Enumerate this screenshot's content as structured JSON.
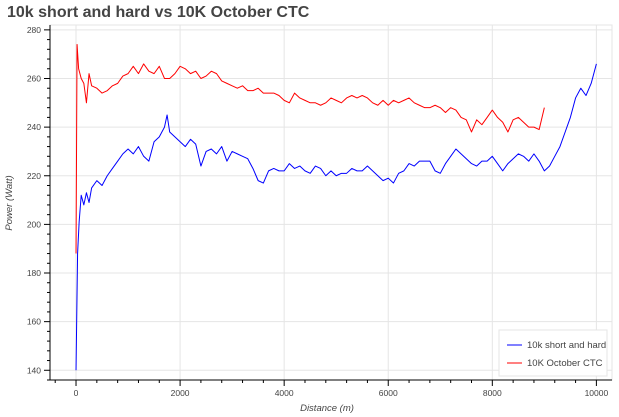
{
  "chart_data": {
    "type": "line",
    "title": "10k short and hard vs 10K October CTC",
    "xlabel": "Distance (m)",
    "ylabel": "Power (Watt)",
    "xlim": [
      -500,
      10300
    ],
    "ylim": [
      136,
      282
    ],
    "x_ticks": [
      0,
      2000,
      4000,
      6000,
      8000,
      10000
    ],
    "y_ticks": [
      140,
      160,
      180,
      200,
      220,
      240,
      260,
      280
    ],
    "grid": true,
    "legend_position": "bottom-right",
    "series": [
      {
        "name": "10k short and hard",
        "color": "#0000ff",
        "points": [
          [
            0,
            140
          ],
          [
            30,
            188
          ],
          [
            60,
            201
          ],
          [
            100,
            212
          ],
          [
            150,
            208
          ],
          [
            200,
            213
          ],
          [
            250,
            209
          ],
          [
            300,
            215
          ],
          [
            400,
            218
          ],
          [
            500,
            216
          ],
          [
            600,
            220
          ],
          [
            700,
            223
          ],
          [
            800,
            226
          ],
          [
            900,
            229
          ],
          [
            1000,
            231
          ],
          [
            1100,
            229
          ],
          [
            1200,
            232
          ],
          [
            1300,
            228
          ],
          [
            1400,
            226
          ],
          [
            1500,
            234
          ],
          [
            1600,
            236
          ],
          [
            1700,
            240
          ],
          [
            1750,
            245
          ],
          [
            1800,
            238
          ],
          [
            1900,
            236
          ],
          [
            2000,
            234
          ],
          [
            2100,
            232
          ],
          [
            2200,
            235
          ],
          [
            2300,
            233
          ],
          [
            2400,
            224
          ],
          [
            2500,
            230
          ],
          [
            2600,
            231
          ],
          [
            2700,
            229
          ],
          [
            2800,
            232
          ],
          [
            2900,
            226
          ],
          [
            3000,
            230
          ],
          [
            3100,
            229
          ],
          [
            3200,
            228
          ],
          [
            3300,
            227
          ],
          [
            3400,
            223
          ],
          [
            3500,
            218
          ],
          [
            3600,
            217
          ],
          [
            3700,
            222
          ],
          [
            3800,
            223
          ],
          [
            3900,
            222
          ],
          [
            4000,
            222
          ],
          [
            4100,
            225
          ],
          [
            4200,
            223
          ],
          [
            4300,
            224
          ],
          [
            4400,
            222
          ],
          [
            4500,
            221
          ],
          [
            4600,
            224
          ],
          [
            4700,
            223
          ],
          [
            4800,
            220
          ],
          [
            4900,
            222
          ],
          [
            5000,
            220
          ],
          [
            5100,
            221
          ],
          [
            5200,
            221
          ],
          [
            5300,
            223
          ],
          [
            5400,
            222
          ],
          [
            5500,
            222
          ],
          [
            5600,
            224
          ],
          [
            5700,
            222
          ],
          [
            5800,
            220
          ],
          [
            5900,
            218
          ],
          [
            6000,
            219
          ],
          [
            6100,
            217
          ],
          [
            6200,
            221
          ],
          [
            6300,
            222
          ],
          [
            6400,
            225
          ],
          [
            6500,
            224
          ],
          [
            6600,
            226
          ],
          [
            6700,
            226
          ],
          [
            6800,
            226
          ],
          [
            6900,
            222
          ],
          [
            7000,
            221
          ],
          [
            7100,
            225
          ],
          [
            7200,
            228
          ],
          [
            7300,
            231
          ],
          [
            7400,
            229
          ],
          [
            7500,
            227
          ],
          [
            7600,
            225
          ],
          [
            7700,
            224
          ],
          [
            7800,
            226
          ],
          [
            7900,
            226
          ],
          [
            8000,
            228
          ],
          [
            8100,
            225
          ],
          [
            8200,
            222
          ],
          [
            8300,
            225
          ],
          [
            8400,
            227
          ],
          [
            8500,
            229
          ],
          [
            8600,
            228
          ],
          [
            8700,
            226
          ],
          [
            8800,
            229
          ],
          [
            8900,
            226
          ],
          [
            9000,
            222
          ],
          [
            9100,
            224
          ],
          [
            9200,
            228
          ],
          [
            9300,
            232
          ],
          [
            9400,
            238
          ],
          [
            9500,
            244
          ],
          [
            9600,
            252
          ],
          [
            9700,
            256
          ],
          [
            9800,
            253
          ],
          [
            9900,
            258
          ],
          [
            10000,
            266
          ]
        ]
      },
      {
        "name": "10K October CTC",
        "color": "#ff0000",
        "points": [
          [
            0,
            188
          ],
          [
            20,
            274
          ],
          [
            50,
            264
          ],
          [
            100,
            260
          ],
          [
            150,
            258
          ],
          [
            200,
            250
          ],
          [
            250,
            262
          ],
          [
            300,
            257
          ],
          [
            400,
            256
          ],
          [
            500,
            254
          ],
          [
            600,
            255
          ],
          [
            700,
            257
          ],
          [
            800,
            258
          ],
          [
            900,
            261
          ],
          [
            1000,
            262
          ],
          [
            1100,
            265
          ],
          [
            1200,
            262
          ],
          [
            1300,
            266
          ],
          [
            1400,
            263
          ],
          [
            1500,
            262
          ],
          [
            1600,
            265
          ],
          [
            1700,
            260
          ],
          [
            1800,
            260
          ],
          [
            1900,
            262
          ],
          [
            2000,
            265
          ],
          [
            2100,
            264
          ],
          [
            2200,
            262
          ],
          [
            2300,
            263
          ],
          [
            2400,
            260
          ],
          [
            2500,
            261
          ],
          [
            2600,
            263
          ],
          [
            2700,
            262
          ],
          [
            2800,
            259
          ],
          [
            2900,
            258
          ],
          [
            3000,
            257
          ],
          [
            3100,
            256
          ],
          [
            3200,
            257
          ],
          [
            3300,
            255
          ],
          [
            3400,
            255
          ],
          [
            3500,
            256
          ],
          [
            3600,
            254
          ],
          [
            3700,
            254
          ],
          [
            3800,
            254
          ],
          [
            3900,
            253
          ],
          [
            4000,
            251
          ],
          [
            4100,
            250
          ],
          [
            4200,
            254
          ],
          [
            4300,
            252
          ],
          [
            4400,
            251
          ],
          [
            4500,
            250
          ],
          [
            4600,
            250
          ],
          [
            4700,
            249
          ],
          [
            4800,
            250
          ],
          [
            4900,
            252
          ],
          [
            5000,
            251
          ],
          [
            5100,
            250
          ],
          [
            5200,
            252
          ],
          [
            5300,
            253
          ],
          [
            5400,
            252
          ],
          [
            5500,
            253
          ],
          [
            5600,
            252
          ],
          [
            5700,
            250
          ],
          [
            5800,
            249
          ],
          [
            5900,
            251
          ],
          [
            6000,
            249
          ],
          [
            6100,
            251
          ],
          [
            6200,
            250
          ],
          [
            6300,
            251
          ],
          [
            6400,
            252
          ],
          [
            6500,
            250
          ],
          [
            6600,
            249
          ],
          [
            6700,
            248
          ],
          [
            6800,
            248
          ],
          [
            6900,
            249
          ],
          [
            7000,
            248
          ],
          [
            7100,
            246
          ],
          [
            7200,
            248
          ],
          [
            7300,
            247
          ],
          [
            7400,
            244
          ],
          [
            7500,
            243
          ],
          [
            7600,
            238
          ],
          [
            7700,
            243
          ],
          [
            7800,
            241
          ],
          [
            7900,
            244
          ],
          [
            8000,
            247
          ],
          [
            8100,
            244
          ],
          [
            8200,
            242
          ],
          [
            8300,
            238
          ],
          [
            8400,
            243
          ],
          [
            8500,
            244
          ],
          [
            8600,
            242
          ],
          [
            8700,
            240
          ],
          [
            8800,
            240
          ],
          [
            8900,
            239
          ],
          [
            9000,
            248
          ]
        ]
      }
    ]
  }
}
